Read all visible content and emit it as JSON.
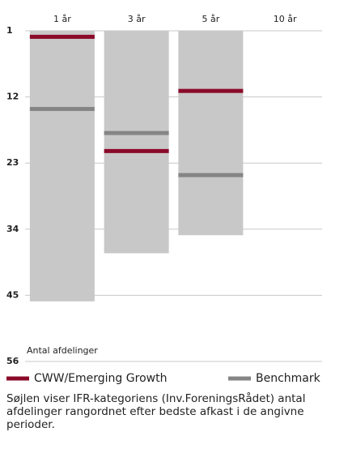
{
  "chart_data": {
    "type": "rank",
    "categories": [
      "1 år",
      "3 år",
      "5 år",
      "10 år"
    ],
    "values": [
      46,
      38,
      35,
      null
    ],
    "color": "#c8c8c8",
    "series": [
      {
        "name": "CWW/Emerging Growth",
        "color": "#8b0a2a",
        "values": [
          2,
          21,
          11,
          null
        ]
      },
      {
        "name": "Benchmark",
        "color": "#858585",
        "values": [
          14,
          18,
          25,
          null
        ]
      }
    ],
    "y_label": "Antal afdelinger",
    "ylim": [
      1,
      56
    ],
    "yticks": [
      1,
      12,
      23,
      34,
      45,
      56
    ],
    "y_inverted": true,
    "grid": true,
    "note": "Søjlen viser IFR-kategoriens (Inv.ForeningsRådet) antal afdelinger rangordnet efter bedste afkast i de angivne perioder."
  }
}
